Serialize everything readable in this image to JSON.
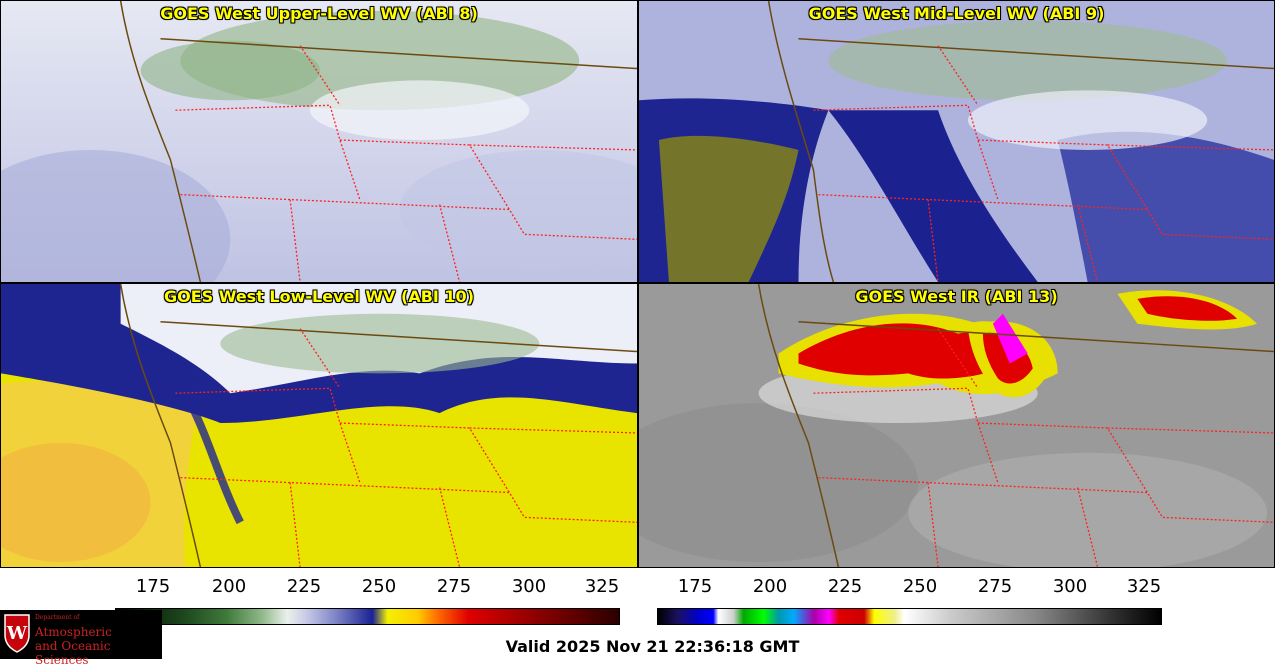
{
  "panels": [
    {
      "title": "GOES West Upper-Level WV (ABI 8)"
    },
    {
      "title": "GOES West Mid-Level WV (ABI 9)"
    },
    {
      "title": "GOES West Low-Level WV (ABI 10)"
    },
    {
      "title": "GOES West IR (ABI 13)"
    }
  ],
  "colorbar_wv": {
    "ticks": [
      "175",
      "200",
      "225",
      "250",
      "275",
      "300",
      "325"
    ]
  },
  "colorbar_ir": {
    "ticks": [
      "175",
      "200",
      "225",
      "250",
      "275",
      "300",
      "325"
    ]
  },
  "logo": {
    "line1": "Department of",
    "line2": "Atmospheric",
    "line3": "and Oceanic Sciences",
    "crest_letter": "W"
  },
  "valid_time": "Valid 2025 Nov 21 22:36:18 GMT",
  "colors": {
    "title_text": "#ffff00",
    "border_state": "#ff2020",
    "coastline": "#6b4a10",
    "logo_red": "#cc2222"
  }
}
